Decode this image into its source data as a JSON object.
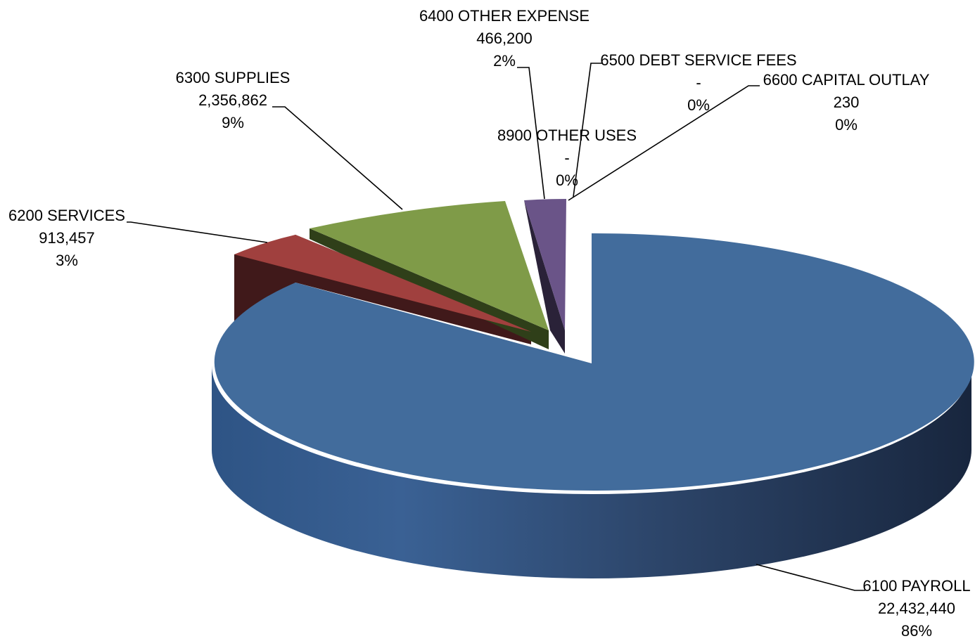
{
  "chart_data": {
    "type": "pie",
    "title": "",
    "slices": [
      {
        "name": "6100 PAYROLL",
        "value_text": "22,432,440",
        "value": 22432440,
        "percent_text": "86%",
        "color": "#426C9C"
      },
      {
        "name": "6200 SERVICES",
        "value_text": "913,457",
        "value": 913457,
        "percent_text": "3%",
        "color": "#A0403E"
      },
      {
        "name": "6300 SUPPLIES",
        "value_text": "2,356,862",
        "value": 2356862,
        "percent_text": "9%",
        "color": "#7F9B48"
      },
      {
        "name": "6400 OTHER EXPENSE",
        "value_text": "466,200",
        "value": 466200,
        "percent_text": "2%",
        "color": "#6A5488"
      },
      {
        "name": "6500 DEBT SERVICE FEES",
        "value_text": "-",
        "value": 0,
        "percent_text": "0%",
        "color": "#3E8EA8"
      },
      {
        "name": "6600 CAPITAL OUTLAY",
        "value_text": "230",
        "value": 230,
        "percent_text": "0%",
        "color": "#E8873A"
      },
      {
        "name": "8900 OTHER USES",
        "value_text": "-",
        "value": 0,
        "percent_text": "0%",
        "color": "#8FA3C8"
      }
    ],
    "legend": "none",
    "style": "3d-exploded"
  }
}
